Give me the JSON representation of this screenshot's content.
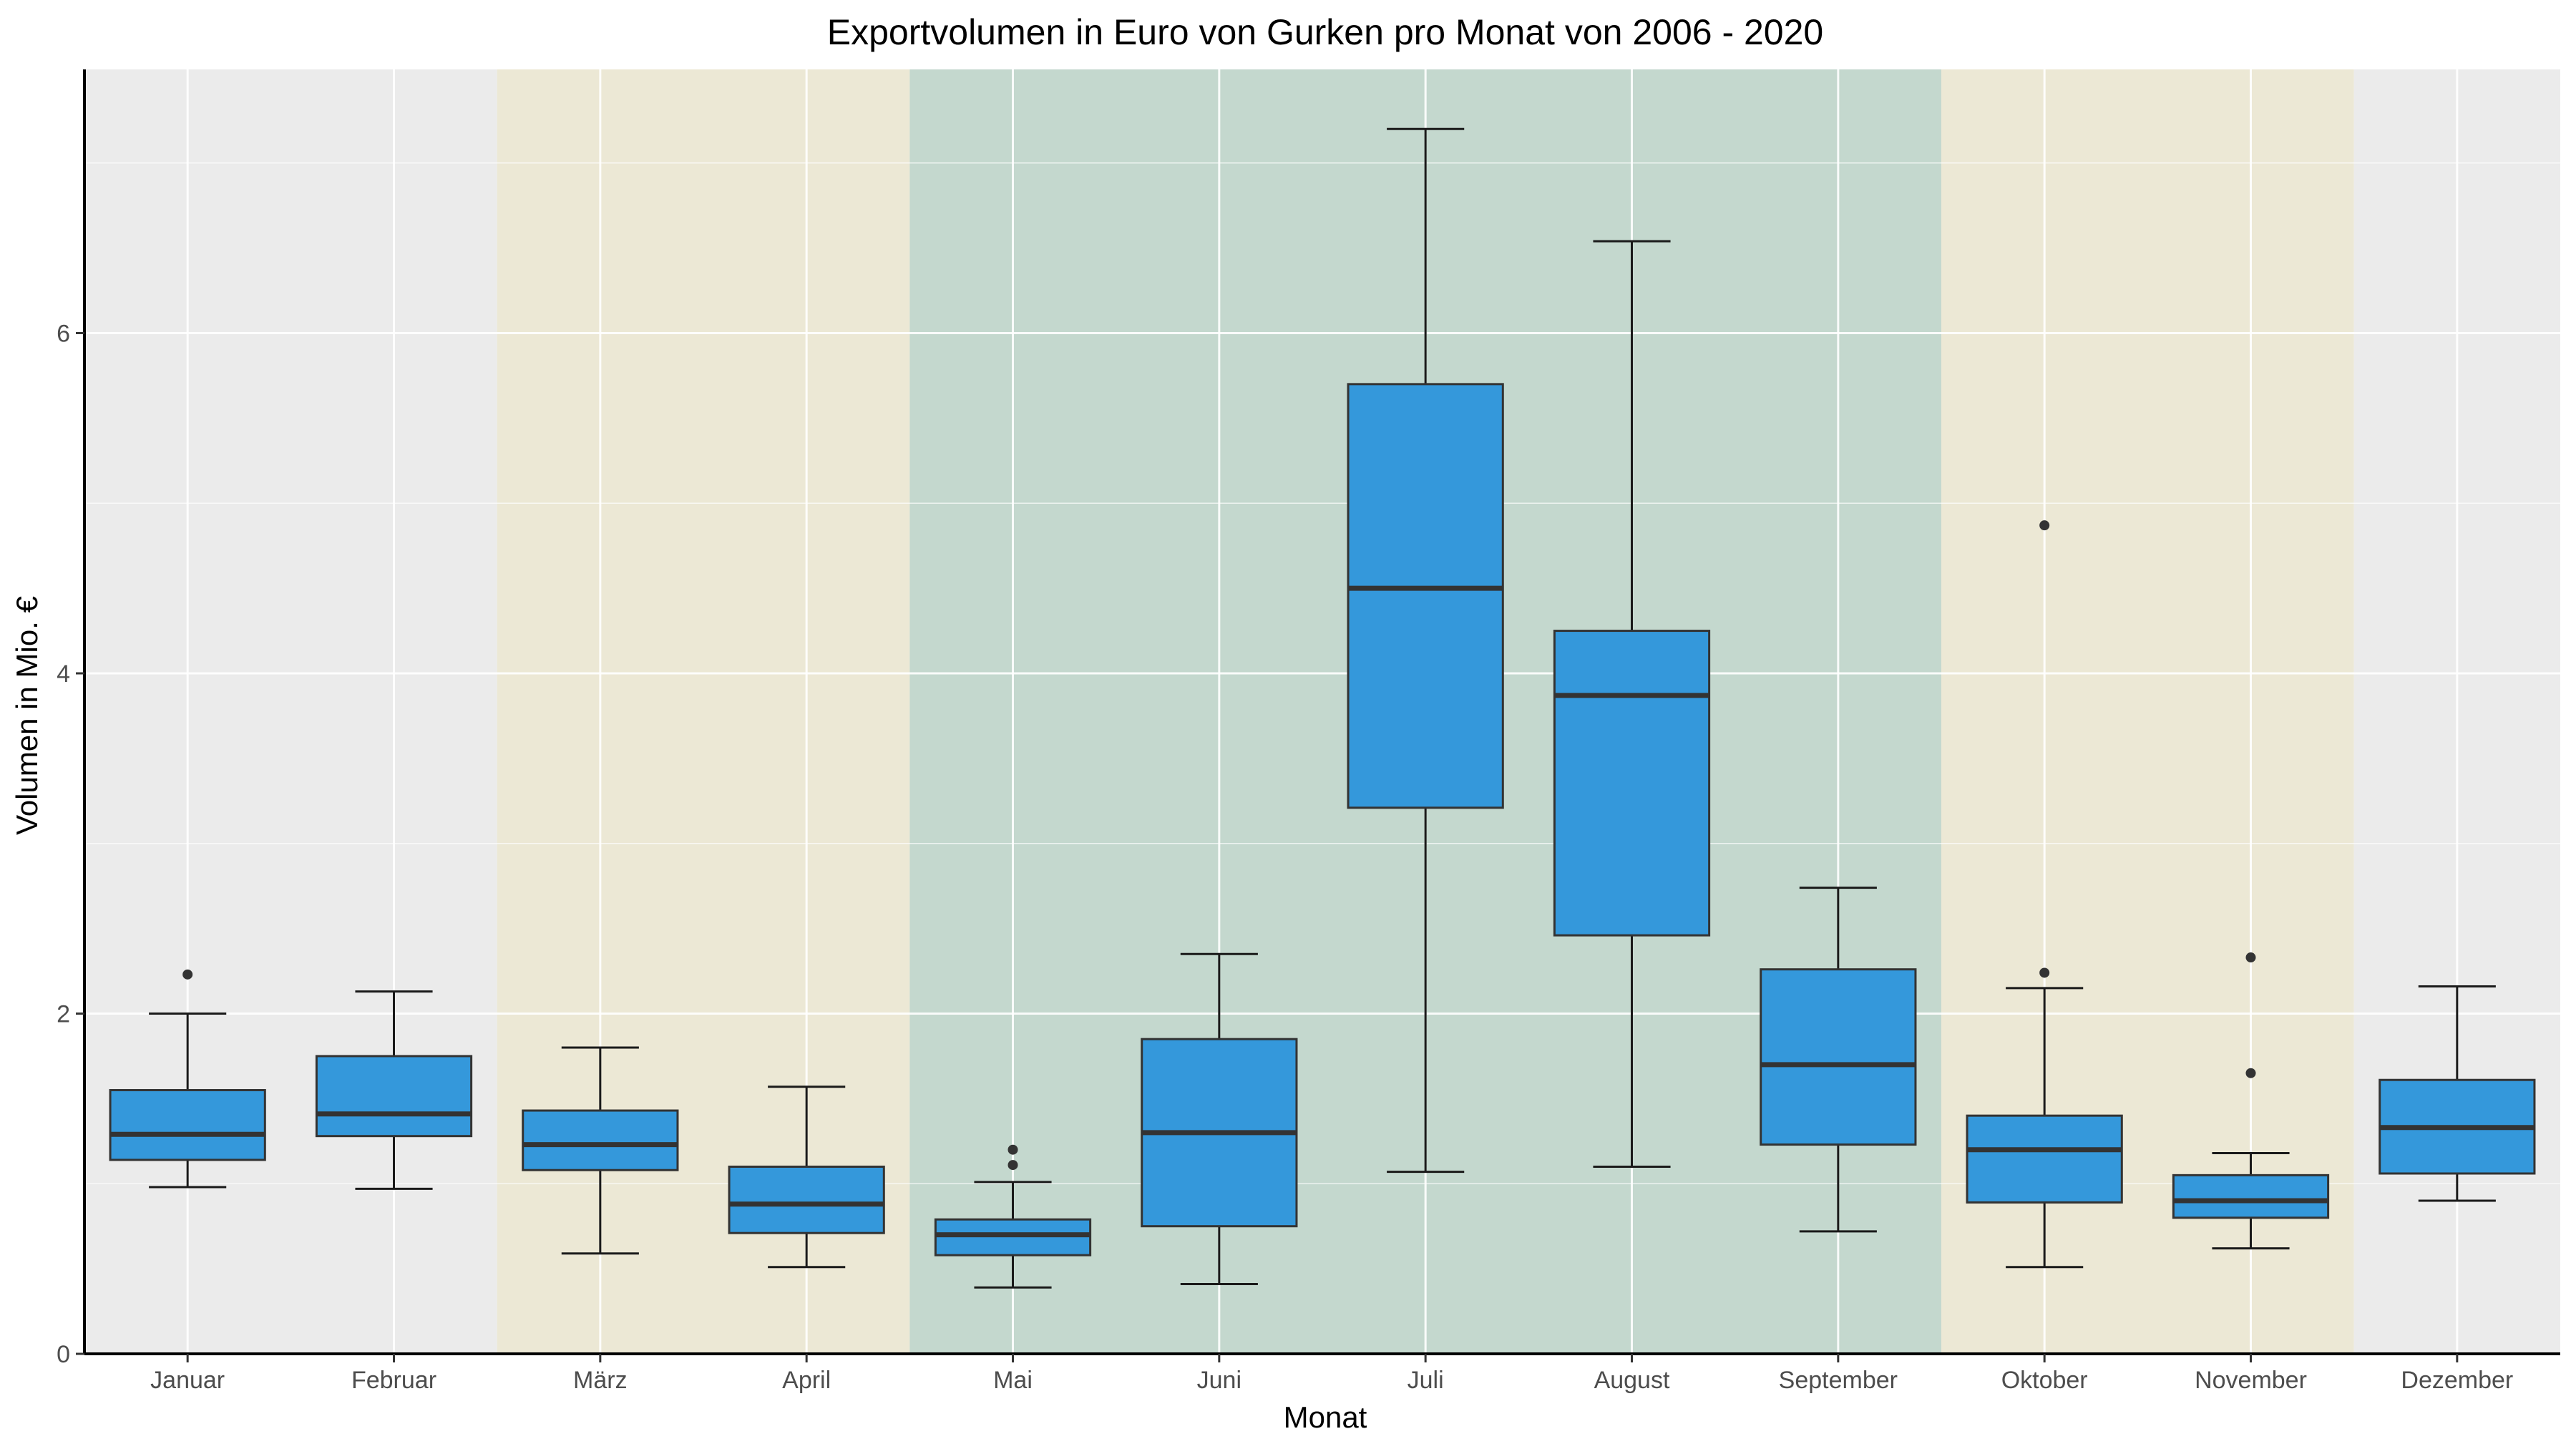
{
  "chart_data": {
    "type": "box",
    "title": "Exportvolumen in Euro von Gurken pro Monat von 2006 - 2020",
    "xlabel": "Monat",
    "ylabel": "Volumen in Mio. €",
    "ylim": [
      0,
      7.55
    ],
    "y_ticks": [
      0,
      2,
      4,
      6
    ],
    "y_tick_labels": [
      "0",
      "2",
      "4",
      "6"
    ],
    "grid": true,
    "categories": [
      "Januar",
      "Februar",
      "März",
      "April",
      "Mai",
      "Juni",
      "Juli",
      "August",
      "September",
      "Oktober",
      "November",
      "Dezember"
    ],
    "boxes": [
      {
        "min": 0.98,
        "q1": 1.14,
        "median": 1.29,
        "q3": 1.55,
        "max": 2.0,
        "outliers": [
          2.23
        ]
      },
      {
        "min": 0.97,
        "q1": 1.28,
        "median": 1.41,
        "q3": 1.75,
        "max": 2.13,
        "outliers": []
      },
      {
        "min": 0.59,
        "q1": 1.08,
        "median": 1.23,
        "q3": 1.43,
        "max": 1.8,
        "outliers": []
      },
      {
        "min": 0.51,
        "q1": 0.71,
        "median": 0.88,
        "q3": 1.1,
        "max": 1.57,
        "outliers": []
      },
      {
        "min": 0.39,
        "q1": 0.58,
        "median": 0.7,
        "q3": 0.79,
        "max": 1.01,
        "outliers": [
          1.11,
          1.2
        ]
      },
      {
        "min": 0.41,
        "q1": 0.75,
        "median": 1.3,
        "q3": 1.85,
        "max": 2.35,
        "outliers": []
      },
      {
        "min": 1.07,
        "q1": 3.21,
        "median": 4.5,
        "q3": 5.7,
        "max": 7.2,
        "outliers": []
      },
      {
        "min": 1.1,
        "q1": 2.46,
        "median": 3.87,
        "q3": 4.25,
        "max": 6.54,
        "outliers": []
      },
      {
        "min": 0.72,
        "q1": 1.23,
        "median": 1.7,
        "q3": 2.26,
        "max": 2.74,
        "outliers": []
      },
      {
        "min": 0.51,
        "q1": 0.89,
        "median": 1.2,
        "q3": 1.4,
        "max": 2.15,
        "outliers": [
          2.24,
          4.87
        ]
      },
      {
        "min": 0.62,
        "q1": 0.8,
        "median": 0.9,
        "q3": 1.05,
        "max": 1.18,
        "outliers": [
          1.65,
          2.33
        ]
      },
      {
        "min": 0.9,
        "q1": 1.06,
        "median": 1.33,
        "q3": 1.61,
        "max": 2.16,
        "outliers": []
      }
    ],
    "season_bands": [
      {
        "from": 0,
        "to": 1,
        "color": "#ebebeb"
      },
      {
        "from": 2,
        "to": 3,
        "color": "#ece8d5"
      },
      {
        "from": 4,
        "to": 8,
        "color": "#c4d8ce"
      },
      {
        "from": 9,
        "to": 10,
        "color": "#ece8d5"
      },
      {
        "from": 11,
        "to": 11,
        "color": "#ebebeb"
      }
    ],
    "colors": {
      "box_fill": "#3498db",
      "box_stroke": "#333333",
      "whisker": "#1a1a1a",
      "outlier": "#333333",
      "grid": "#ffffff",
      "axis": "#000000"
    }
  }
}
